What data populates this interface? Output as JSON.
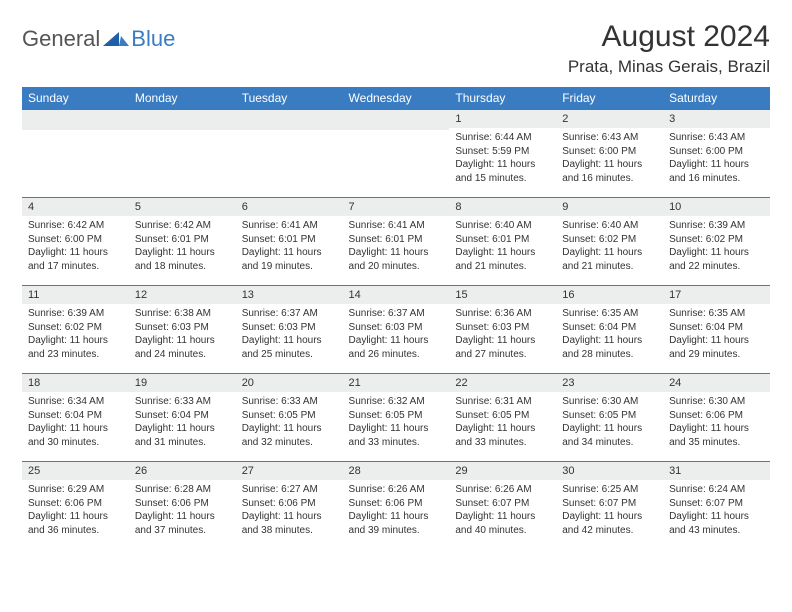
{
  "brand": {
    "general": "General",
    "blue": "Blue"
  },
  "title": "August 2024",
  "location": "Prata, Minas Gerais, Brazil",
  "colors": {
    "header_bg": "#3a7cc2",
    "header_text": "#ffffff",
    "daynum_bg": "#eceded",
    "body_text": "#333333",
    "rule": "#3a7cc2",
    "page_bg": "#ffffff"
  },
  "weekdays": [
    "Sunday",
    "Monday",
    "Tuesday",
    "Wednesday",
    "Thursday",
    "Friday",
    "Saturday"
  ],
  "weeks": [
    [
      null,
      null,
      null,
      null,
      {
        "n": "1",
        "sr": "Sunrise: 6:44 AM",
        "ss": "Sunset: 5:59 PM",
        "d1": "Daylight: 11 hours",
        "d2": "and 15 minutes."
      },
      {
        "n": "2",
        "sr": "Sunrise: 6:43 AM",
        "ss": "Sunset: 6:00 PM",
        "d1": "Daylight: 11 hours",
        "d2": "and 16 minutes."
      },
      {
        "n": "3",
        "sr": "Sunrise: 6:43 AM",
        "ss": "Sunset: 6:00 PM",
        "d1": "Daylight: 11 hours",
        "d2": "and 16 minutes."
      }
    ],
    [
      {
        "n": "4",
        "sr": "Sunrise: 6:42 AM",
        "ss": "Sunset: 6:00 PM",
        "d1": "Daylight: 11 hours",
        "d2": "and 17 minutes."
      },
      {
        "n": "5",
        "sr": "Sunrise: 6:42 AM",
        "ss": "Sunset: 6:01 PM",
        "d1": "Daylight: 11 hours",
        "d2": "and 18 minutes."
      },
      {
        "n": "6",
        "sr": "Sunrise: 6:41 AM",
        "ss": "Sunset: 6:01 PM",
        "d1": "Daylight: 11 hours",
        "d2": "and 19 minutes."
      },
      {
        "n": "7",
        "sr": "Sunrise: 6:41 AM",
        "ss": "Sunset: 6:01 PM",
        "d1": "Daylight: 11 hours",
        "d2": "and 20 minutes."
      },
      {
        "n": "8",
        "sr": "Sunrise: 6:40 AM",
        "ss": "Sunset: 6:01 PM",
        "d1": "Daylight: 11 hours",
        "d2": "and 21 minutes."
      },
      {
        "n": "9",
        "sr": "Sunrise: 6:40 AM",
        "ss": "Sunset: 6:02 PM",
        "d1": "Daylight: 11 hours",
        "d2": "and 21 minutes."
      },
      {
        "n": "10",
        "sr": "Sunrise: 6:39 AM",
        "ss": "Sunset: 6:02 PM",
        "d1": "Daylight: 11 hours",
        "d2": "and 22 minutes."
      }
    ],
    [
      {
        "n": "11",
        "sr": "Sunrise: 6:39 AM",
        "ss": "Sunset: 6:02 PM",
        "d1": "Daylight: 11 hours",
        "d2": "and 23 minutes."
      },
      {
        "n": "12",
        "sr": "Sunrise: 6:38 AM",
        "ss": "Sunset: 6:03 PM",
        "d1": "Daylight: 11 hours",
        "d2": "and 24 minutes."
      },
      {
        "n": "13",
        "sr": "Sunrise: 6:37 AM",
        "ss": "Sunset: 6:03 PM",
        "d1": "Daylight: 11 hours",
        "d2": "and 25 minutes."
      },
      {
        "n": "14",
        "sr": "Sunrise: 6:37 AM",
        "ss": "Sunset: 6:03 PM",
        "d1": "Daylight: 11 hours",
        "d2": "and 26 minutes."
      },
      {
        "n": "15",
        "sr": "Sunrise: 6:36 AM",
        "ss": "Sunset: 6:03 PM",
        "d1": "Daylight: 11 hours",
        "d2": "and 27 minutes."
      },
      {
        "n": "16",
        "sr": "Sunrise: 6:35 AM",
        "ss": "Sunset: 6:04 PM",
        "d1": "Daylight: 11 hours",
        "d2": "and 28 minutes."
      },
      {
        "n": "17",
        "sr": "Sunrise: 6:35 AM",
        "ss": "Sunset: 6:04 PM",
        "d1": "Daylight: 11 hours",
        "d2": "and 29 minutes."
      }
    ],
    [
      {
        "n": "18",
        "sr": "Sunrise: 6:34 AM",
        "ss": "Sunset: 6:04 PM",
        "d1": "Daylight: 11 hours",
        "d2": "and 30 minutes."
      },
      {
        "n": "19",
        "sr": "Sunrise: 6:33 AM",
        "ss": "Sunset: 6:04 PM",
        "d1": "Daylight: 11 hours",
        "d2": "and 31 minutes."
      },
      {
        "n": "20",
        "sr": "Sunrise: 6:33 AM",
        "ss": "Sunset: 6:05 PM",
        "d1": "Daylight: 11 hours",
        "d2": "and 32 minutes."
      },
      {
        "n": "21",
        "sr": "Sunrise: 6:32 AM",
        "ss": "Sunset: 6:05 PM",
        "d1": "Daylight: 11 hours",
        "d2": "and 33 minutes."
      },
      {
        "n": "22",
        "sr": "Sunrise: 6:31 AM",
        "ss": "Sunset: 6:05 PM",
        "d1": "Daylight: 11 hours",
        "d2": "and 33 minutes."
      },
      {
        "n": "23",
        "sr": "Sunrise: 6:30 AM",
        "ss": "Sunset: 6:05 PM",
        "d1": "Daylight: 11 hours",
        "d2": "and 34 minutes."
      },
      {
        "n": "24",
        "sr": "Sunrise: 6:30 AM",
        "ss": "Sunset: 6:06 PM",
        "d1": "Daylight: 11 hours",
        "d2": "and 35 minutes."
      }
    ],
    [
      {
        "n": "25",
        "sr": "Sunrise: 6:29 AM",
        "ss": "Sunset: 6:06 PM",
        "d1": "Daylight: 11 hours",
        "d2": "and 36 minutes."
      },
      {
        "n": "26",
        "sr": "Sunrise: 6:28 AM",
        "ss": "Sunset: 6:06 PM",
        "d1": "Daylight: 11 hours",
        "d2": "and 37 minutes."
      },
      {
        "n": "27",
        "sr": "Sunrise: 6:27 AM",
        "ss": "Sunset: 6:06 PM",
        "d1": "Daylight: 11 hours",
        "d2": "and 38 minutes."
      },
      {
        "n": "28",
        "sr": "Sunrise: 6:26 AM",
        "ss": "Sunset: 6:06 PM",
        "d1": "Daylight: 11 hours",
        "d2": "and 39 minutes."
      },
      {
        "n": "29",
        "sr": "Sunrise: 6:26 AM",
        "ss": "Sunset: 6:07 PM",
        "d1": "Daylight: 11 hours",
        "d2": "and 40 minutes."
      },
      {
        "n": "30",
        "sr": "Sunrise: 6:25 AM",
        "ss": "Sunset: 6:07 PM",
        "d1": "Daylight: 11 hours",
        "d2": "and 42 minutes."
      },
      {
        "n": "31",
        "sr": "Sunrise: 6:24 AM",
        "ss": "Sunset: 6:07 PM",
        "d1": "Daylight: 11 hours",
        "d2": "and 43 minutes."
      }
    ]
  ]
}
